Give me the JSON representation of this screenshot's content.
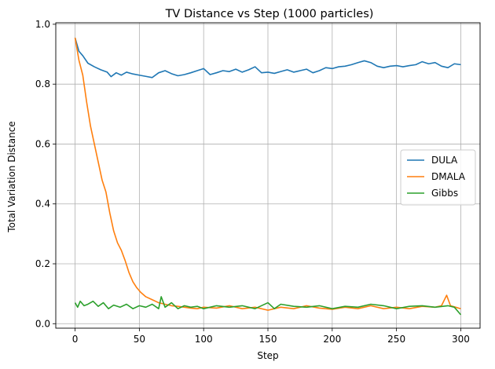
{
  "chart_data": {
    "type": "line",
    "title": "TV Distance vs Step (1000 particles)",
    "xlabel": "Step",
    "ylabel": "Total Variation Distance",
    "xlim": [
      -15,
      315
    ],
    "ylim": [
      -0.015,
      1.005
    ],
    "xticks": [
      0,
      50,
      100,
      150,
      200,
      250,
      300
    ],
    "yticks": [
      0.0,
      0.2,
      0.4,
      0.6,
      0.8,
      1.0
    ],
    "xtick_labels": [
      "0",
      "50",
      "100",
      "150",
      "200",
      "250",
      "300"
    ],
    "ytick_labels": [
      "0.0",
      "0.2",
      "0.4",
      "0.6",
      "0.8",
      "1.0"
    ],
    "grid": true,
    "legend_position": "center-right",
    "series": [
      {
        "name": "DULA",
        "color": "#1f77b4",
        "points": [
          [
            0,
            0.955
          ],
          [
            3,
            0.91
          ],
          [
            6,
            0.895
          ],
          [
            10,
            0.87
          ],
          [
            15,
            0.858
          ],
          [
            20,
            0.848
          ],
          [
            25,
            0.84
          ],
          [
            28,
            0.825
          ],
          [
            32,
            0.838
          ],
          [
            36,
            0.83
          ],
          [
            40,
            0.84
          ],
          [
            45,
            0.834
          ],
          [
            50,
            0.83
          ],
          [
            55,
            0.826
          ],
          [
            60,
            0.822
          ],
          [
            65,
            0.838
          ],
          [
            70,
            0.845
          ],
          [
            75,
            0.835
          ],
          [
            80,
            0.828
          ],
          [
            85,
            0.832
          ],
          [
            90,
            0.838
          ],
          [
            95,
            0.845
          ],
          [
            100,
            0.852
          ],
          [
            105,
            0.832
          ],
          [
            110,
            0.838
          ],
          [
            115,
            0.845
          ],
          [
            120,
            0.842
          ],
          [
            125,
            0.85
          ],
          [
            130,
            0.84
          ],
          [
            135,
            0.848
          ],
          [
            140,
            0.858
          ],
          [
            145,
            0.838
          ],
          [
            150,
            0.84
          ],
          [
            155,
            0.836
          ],
          [
            160,
            0.842
          ],
          [
            165,
            0.848
          ],
          [
            170,
            0.84
          ],
          [
            175,
            0.845
          ],
          [
            180,
            0.85
          ],
          [
            185,
            0.838
          ],
          [
            190,
            0.845
          ],
          [
            195,
            0.855
          ],
          [
            200,
            0.852
          ],
          [
            205,
            0.858
          ],
          [
            210,
            0.86
          ],
          [
            215,
            0.865
          ],
          [
            220,
            0.872
          ],
          [
            225,
            0.878
          ],
          [
            230,
            0.872
          ],
          [
            235,
            0.86
          ],
          [
            240,
            0.855
          ],
          [
            245,
            0.86
          ],
          [
            250,
            0.862
          ],
          [
            255,
            0.858
          ],
          [
            260,
            0.862
          ],
          [
            265,
            0.865
          ],
          [
            270,
            0.875
          ],
          [
            275,
            0.868
          ],
          [
            280,
            0.872
          ],
          [
            285,
            0.86
          ],
          [
            290,
            0.855
          ],
          [
            295,
            0.868
          ],
          [
            300,
            0.865
          ]
        ]
      },
      {
        "name": "DMALA",
        "color": "#ff7f0e",
        "points": [
          [
            0,
            0.955
          ],
          [
            3,
            0.88
          ],
          [
            6,
            0.83
          ],
          [
            9,
            0.74
          ],
          [
            12,
            0.66
          ],
          [
            15,
            0.6
          ],
          [
            18,
            0.54
          ],
          [
            21,
            0.48
          ],
          [
            24,
            0.44
          ],
          [
            27,
            0.37
          ],
          [
            30,
            0.31
          ],
          [
            33,
            0.27
          ],
          [
            36,
            0.245
          ],
          [
            39,
            0.21
          ],
          [
            42,
            0.17
          ],
          [
            45,
            0.14
          ],
          [
            48,
            0.12
          ],
          [
            51,
            0.105
          ],
          [
            55,
            0.09
          ],
          [
            60,
            0.08
          ],
          [
            65,
            0.07
          ],
          [
            70,
            0.065
          ],
          [
            75,
            0.06
          ],
          [
            80,
            0.058
          ],
          [
            85,
            0.055
          ],
          [
            90,
            0.052
          ],
          [
            95,
            0.05
          ],
          [
            100,
            0.055
          ],
          [
            110,
            0.052
          ],
          [
            120,
            0.06
          ],
          [
            130,
            0.05
          ],
          [
            140,
            0.055
          ],
          [
            150,
            0.045
          ],
          [
            160,
            0.055
          ],
          [
            170,
            0.05
          ],
          [
            180,
            0.06
          ],
          [
            190,
            0.052
          ],
          [
            200,
            0.048
          ],
          [
            210,
            0.055
          ],
          [
            220,
            0.05
          ],
          [
            230,
            0.06
          ],
          [
            240,
            0.05
          ],
          [
            250,
            0.055
          ],
          [
            260,
            0.05
          ],
          [
            270,
            0.058
          ],
          [
            280,
            0.055
          ],
          [
            285,
            0.06
          ],
          [
            289,
            0.095
          ],
          [
            292,
            0.06
          ],
          [
            296,
            0.055
          ],
          [
            300,
            0.05
          ]
        ]
      },
      {
        "name": "Gibbs",
        "color": "#2ca02c",
        "points": [
          [
            0,
            0.07
          ],
          [
            2,
            0.055
          ],
          [
            4,
            0.075
          ],
          [
            7,
            0.06
          ],
          [
            10,
            0.065
          ],
          [
            14,
            0.075
          ],
          [
            18,
            0.058
          ],
          [
            22,
            0.07
          ],
          [
            26,
            0.05
          ],
          [
            30,
            0.062
          ],
          [
            35,
            0.055
          ],
          [
            40,
            0.065
          ],
          [
            45,
            0.05
          ],
          [
            50,
            0.06
          ],
          [
            55,
            0.055
          ],
          [
            60,
            0.065
          ],
          [
            65,
            0.05
          ],
          [
            67,
            0.09
          ],
          [
            70,
            0.055
          ],
          [
            75,
            0.07
          ],
          [
            80,
            0.05
          ],
          [
            85,
            0.06
          ],
          [
            90,
            0.055
          ],
          [
            95,
            0.058
          ],
          [
            100,
            0.05
          ],
          [
            110,
            0.06
          ],
          [
            120,
            0.055
          ],
          [
            130,
            0.06
          ],
          [
            140,
            0.05
          ],
          [
            150,
            0.07
          ],
          [
            155,
            0.05
          ],
          [
            160,
            0.065
          ],
          [
            170,
            0.058
          ],
          [
            180,
            0.055
          ],
          [
            190,
            0.06
          ],
          [
            200,
            0.05
          ],
          [
            210,
            0.058
          ],
          [
            220,
            0.055
          ],
          [
            230,
            0.065
          ],
          [
            240,
            0.06
          ],
          [
            250,
            0.05
          ],
          [
            260,
            0.058
          ],
          [
            270,
            0.06
          ],
          [
            280,
            0.055
          ],
          [
            290,
            0.06
          ],
          [
            295,
            0.055
          ],
          [
            300,
            0.03
          ]
        ]
      }
    ]
  }
}
